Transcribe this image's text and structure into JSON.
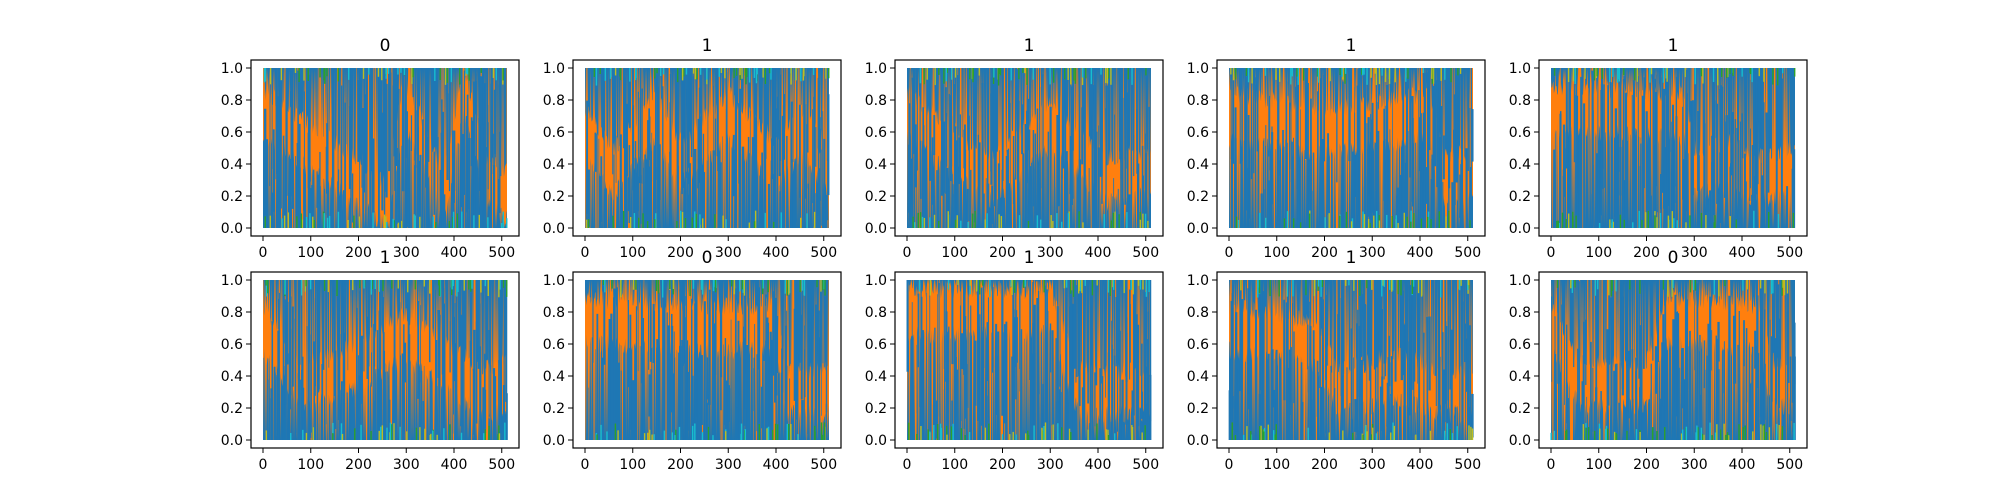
{
  "chart_data": [
    {
      "type": "area",
      "title": "0",
      "xlim": [
        0,
        511
      ],
      "ylim": [
        0,
        1
      ],
      "xticks": [
        0,
        100,
        200,
        300,
        400,
        500
      ],
      "yticks": [
        "0.0",
        "0.2",
        "0.4",
        "0.6",
        "0.8",
        "1.0"
      ],
      "grid": false,
      "colors": [
        "#1f77b4",
        "#ff7f0e",
        "#17becf",
        "#bcbd22",
        "#2ca02c"
      ],
      "transitions": [
        [
          0,
          0.72
        ],
        [
          260,
          0.15
        ],
        [
          295,
          0.8
        ],
        [
          380,
          0.2
        ],
        [
          420,
          0.85
        ],
        [
          470,
          0.3
        ],
        [
          511,
          0.2
        ]
      ]
    },
    {
      "type": "area",
      "title": "1",
      "xlim": [
        0,
        511
      ],
      "ylim": [
        0,
        1
      ],
      "xticks": [
        0,
        100,
        200,
        300,
        400,
        500
      ],
      "yticks": [
        "0.0",
        "0.2",
        "0.4",
        "0.6",
        "0.8",
        "1.0"
      ],
      "grid": false,
      "colors": [
        "#1f77b4",
        "#ff7f0e",
        "#17becf",
        "#bcbd22",
        "#2ca02c"
      ],
      "transitions": [
        [
          0,
          0.6
        ],
        [
          60,
          0.35
        ],
        [
          150,
          0.7
        ],
        [
          200,
          0.4
        ],
        [
          300,
          0.7
        ],
        [
          400,
          0.4
        ],
        [
          460,
          0.6
        ],
        [
          511,
          0.35
        ]
      ]
    },
    {
      "type": "area",
      "title": "1",
      "xlim": [
        0,
        511
      ],
      "ylim": [
        0,
        1
      ],
      "xticks": [
        0,
        100,
        200,
        300,
        400,
        500
      ],
      "yticks": [
        "0.0",
        "0.2",
        "0.4",
        "0.6",
        "0.8",
        "1.0"
      ],
      "grid": false,
      "colors": [
        "#1f77b4",
        "#ff7f0e",
        "#17becf",
        "#bcbd22",
        "#2ca02c"
      ],
      "transitions": [
        [
          0,
          0.7
        ],
        [
          130,
          0.4
        ],
        [
          180,
          0.3
        ],
        [
          300,
          0.65
        ],
        [
          420,
          0.3
        ],
        [
          511,
          0.35
        ]
      ]
    },
    {
      "type": "area",
      "title": "1",
      "xlim": [
        0,
        511
      ],
      "ylim": [
        0,
        1
      ],
      "xticks": [
        0,
        100,
        200,
        300,
        400,
        500
      ],
      "yticks": [
        "0.0",
        "0.2",
        "0.4",
        "0.6",
        "0.8",
        "1.0"
      ],
      "grid": false,
      "colors": [
        "#1f77b4",
        "#ff7f0e",
        "#17becf",
        "#bcbd22",
        "#2ca02c"
      ],
      "transitions": [
        [
          0,
          0.7
        ],
        [
          200,
          0.6
        ],
        [
          420,
          0.7
        ],
        [
          450,
          0.3
        ],
        [
          511,
          0.35
        ]
      ]
    },
    {
      "type": "area",
      "title": "1",
      "xlim": [
        0,
        511
      ],
      "ylim": [
        0,
        1
      ],
      "xticks": [
        0,
        100,
        200,
        300,
        400,
        500
      ],
      "yticks": [
        "0.0",
        "0.2",
        "0.4",
        "0.6",
        "0.8",
        "1.0"
      ],
      "grid": false,
      "colors": [
        "#1f77b4",
        "#ff7f0e",
        "#17becf",
        "#bcbd22",
        "#2ca02c"
      ],
      "transitions": [
        [
          0,
          0.75
        ],
        [
          280,
          0.7
        ],
        [
          300,
          0.35
        ],
        [
          380,
          0.4
        ],
        [
          420,
          0.3
        ],
        [
          511,
          0.35
        ]
      ]
    },
    {
      "type": "area",
      "title": "1",
      "xlim": [
        0,
        511
      ],
      "ylim": [
        0,
        1
      ],
      "xticks": [
        0,
        100,
        200,
        300,
        400,
        500
      ],
      "yticks": [
        "0.0",
        "0.2",
        "0.4",
        "0.6",
        "0.8",
        "1.0"
      ],
      "grid": false,
      "colors": [
        "#1f77b4",
        "#ff7f0e",
        "#17becf",
        "#bcbd22",
        "#2ca02c"
      ],
      "transitions": [
        [
          0,
          0.7
        ],
        [
          80,
          0.35
        ],
        [
          160,
          0.4
        ],
        [
          300,
          0.65
        ],
        [
          460,
          0.3
        ],
        [
          511,
          0.35
        ]
      ]
    },
    {
      "type": "area",
      "title": "0",
      "xlim": [
        0,
        511
      ],
      "ylim": [
        0,
        1
      ],
      "xticks": [
        0,
        100,
        200,
        300,
        400,
        500
      ],
      "yticks": [
        "0.0",
        "0.2",
        "0.4",
        "0.6",
        "0.8",
        "1.0"
      ],
      "grid": false,
      "colors": [
        "#1f77b4",
        "#ff7f0e",
        "#17becf",
        "#bcbd22",
        "#2ca02c"
      ],
      "transitions": [
        [
          0,
          0.75
        ],
        [
          200,
          0.7
        ],
        [
          400,
          0.7
        ],
        [
          420,
          0.3
        ],
        [
          511,
          0.3
        ]
      ]
    },
    {
      "type": "area",
      "title": "1",
      "xlim": [
        0,
        511
      ],
      "ylim": [
        0,
        1
      ],
      "xticks": [
        0,
        100,
        200,
        300,
        400,
        500
      ],
      "yticks": [
        "0.0",
        "0.2",
        "0.4",
        "0.6",
        "0.8",
        "1.0"
      ],
      "grid": false,
      "colors": [
        "#1f77b4",
        "#ff7f0e",
        "#17becf",
        "#bcbd22",
        "#2ca02c"
      ],
      "transitions": [
        [
          0,
          0.8
        ],
        [
          300,
          0.8
        ],
        [
          360,
          0.3
        ],
        [
          511,
          0.3
        ]
      ]
    },
    {
      "type": "area",
      "title": "1",
      "xlim": [
        0,
        511
      ],
      "ylim": [
        0,
        1
      ],
      "xticks": [
        0,
        100,
        200,
        300,
        400,
        500
      ],
      "yticks": [
        "0.0",
        "0.2",
        "0.4",
        "0.6",
        "0.8",
        "1.0"
      ],
      "grid": false,
      "colors": [
        "#1f77b4",
        "#ff7f0e",
        "#17becf",
        "#bcbd22",
        "#2ca02c"
      ],
      "transitions": [
        [
          0,
          0.7
        ],
        [
          180,
          0.6
        ],
        [
          230,
          0.3
        ],
        [
          350,
          0.4
        ],
        [
          450,
          0.3
        ],
        [
          511,
          0.3
        ]
      ]
    },
    {
      "type": "area",
      "title": "0",
      "xlim": [
        0,
        511
      ],
      "ylim": [
        0,
        1
      ],
      "xticks": [
        0,
        100,
        200,
        300,
        400,
        500
      ],
      "yticks": [
        "0.0",
        "0.2",
        "0.4",
        "0.6",
        "0.8",
        "1.0"
      ],
      "grid": false,
      "colors": [
        "#1f77b4",
        "#ff7f0e",
        "#17becf",
        "#bcbd22",
        "#2ca02c"
      ],
      "transitions": [
        [
          0,
          0.7
        ],
        [
          60,
          0.35
        ],
        [
          200,
          0.35
        ],
        [
          240,
          0.75
        ],
        [
          440,
          0.7
        ],
        [
          460,
          0.35
        ],
        [
          511,
          0.35
        ]
      ]
    }
  ]
}
